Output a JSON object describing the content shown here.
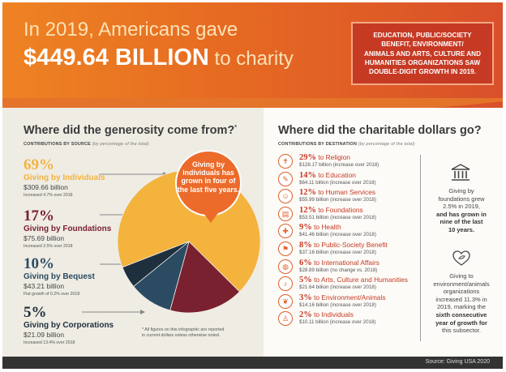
{
  "banner": {
    "line1": "In 2019, Americans gave",
    "amount": "$449.64 BILLION",
    "to_charity": " to charity",
    "callout_lines": [
      "EDUCATION, PUBLIC/SOCIETY",
      "BENEFIT, ENVIRONMENT/",
      "ANIMALS AND ARTS, CULTURE AND",
      "HUMANITIES ORGANIZATIONS SAW",
      "DOUBLE-DIGIT GROWTH IN 2019."
    ]
  },
  "sources": {
    "title": "Where did the generosity come from?",
    "title_mark": "*",
    "subtitle": "CONTRIBUTIONS BY SOURCE",
    "subtitle_note": "(by percentage of the total)",
    "items": [
      {
        "pct": "69%",
        "name": "Giving by Individuals",
        "amount": "$309.66 billion",
        "note": "Increased 4.7% over 2018",
        "color": "#f3b33d"
      },
      {
        "pct": "17%",
        "name": "Giving by Foundations",
        "amount": "$75.69 billion",
        "note": "Increased 2.5% over 2018",
        "color": "#7a2130"
      },
      {
        "pct": "10%",
        "name": "Giving by Bequest",
        "amount": "$43.21 billion",
        "note": "Flat growth of 0.2% over 2018",
        "color": "#2b4b62"
      },
      {
        "pct": "5%",
        "name": "Giving by Corporations",
        "amount": "$21.09 billion",
        "note": "Increased 13.4% over 2018",
        "color": "#1e2f3d"
      }
    ],
    "bubble_text": "Giving by individuals has grown in four of the last five years.",
    "footnote_lines": [
      "* All figures on this infographic are reported",
      "in current dollars unless otherwise noted."
    ]
  },
  "chart_data": {
    "type": "pie",
    "categories": [
      "Giving by Individuals",
      "Giving by Foundations",
      "Giving by Bequest",
      "Giving by Corporations"
    ],
    "values": [
      69,
      17,
      10,
      5
    ],
    "amounts_billion": [
      309.66,
      75.69,
      43.21,
      21.09
    ],
    "colors": [
      "#f3b33d",
      "#7a2130",
      "#2b4b62",
      "#1e2f3d"
    ]
  },
  "destinations": {
    "title": "Where did the charitable dollars go?",
    "subtitle": "CONTRIBUTIONS BY DESTINATION",
    "subtitle_note": "(by percentage of the total)",
    "items": [
      {
        "pct": "29%",
        "label": " to Religion",
        "detail": "$128.17 billion (increase over 2018)",
        "icon": "religion-icon",
        "glyph": "✝"
      },
      {
        "pct": "14%",
        "label": " to Education",
        "detail": "$64.11 billion (increase over 2018)",
        "icon": "education-icon",
        "glyph": "✎"
      },
      {
        "pct": "12%",
        "label": " to Human Services",
        "detail": "$55.99 billion (increase over 2018)",
        "icon": "human-services-icon",
        "glyph": "☺"
      },
      {
        "pct": "12%",
        "label": " to Foundations",
        "detail": "$53.51 billion (increase over 2018)",
        "icon": "foundations-icon",
        "glyph": "▤"
      },
      {
        "pct": "9%",
        "label": " to Health",
        "detail": "$41.46 billion (increase over 2018)",
        "icon": "health-icon",
        "glyph": "✚"
      },
      {
        "pct": "8%",
        "label": " to Public-Society Benefit",
        "detail": "$37.16 billion (increase over 2018)",
        "icon": "public-benefit-icon",
        "glyph": "⚑"
      },
      {
        "pct": "6%",
        "label": " to International Affairs",
        "detail": "$28.89 billion (no change vs. 2018)",
        "icon": "globe-icon",
        "glyph": "◍"
      },
      {
        "pct": "5%",
        "label": " to Arts, Culture and Humanities",
        "detail": "$21.64 billion (increase over 2018)",
        "icon": "arts-icon",
        "glyph": "♪"
      },
      {
        "pct": "3%",
        "label": " to Environment/Animals",
        "detail": "$14.16 billion (increase over 2018)",
        "icon": "environment-icon",
        "glyph": "❦"
      },
      {
        "pct": "2%",
        "label": " to Individuals",
        "detail": "$10.11 billion (increase over 2018)",
        "icon": "individuals-icon",
        "glyph": "♙"
      }
    ]
  },
  "stats": {
    "foundations_lines": [
      "Giving by",
      "foundations grew",
      "2.5% in 2019,",
      "and has grown in",
      "nine of the last",
      "10 years."
    ],
    "environment_lines": [
      "Giving to",
      "environment/animals",
      "organizations",
      "increased 11.3% in",
      "2019, marking the",
      "sixth consecutive",
      "year of growth for",
      "this subsector."
    ]
  },
  "footer": {
    "source": "Source: Giving USA 2020"
  },
  "colors": {
    "orange": "#ee8323",
    "red": "#c63a24",
    "individuals": "#f3b33d",
    "foundations": "#7a2130",
    "bequest": "#2b4b62",
    "corporations": "#1e2f3d"
  }
}
